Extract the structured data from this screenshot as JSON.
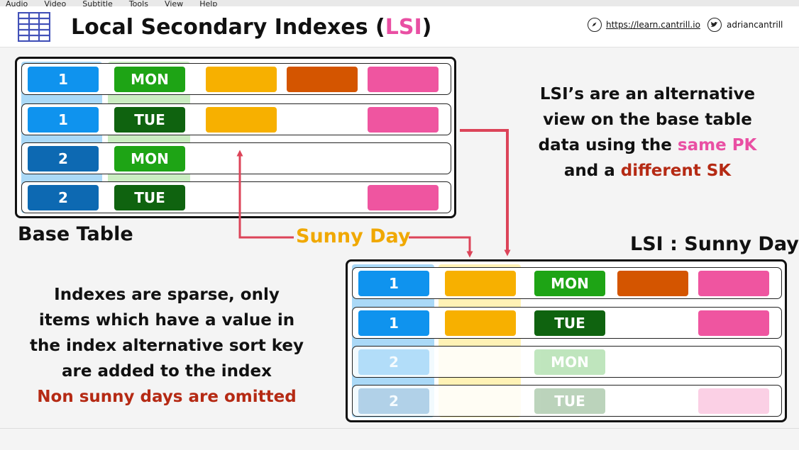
{
  "menu": [
    "Audio",
    "Video",
    "Subtitle",
    "Tools",
    "View",
    "Help"
  ],
  "header": {
    "title_prefix": "Local Secondary Indexes (",
    "title_highlight": "LSI",
    "title_suffix": ")",
    "website": "https://learn.cantrill.io",
    "twitter": "adriancantrill"
  },
  "base_table": {
    "label": "Base Table",
    "rows": [
      {
        "pk": "1",
        "sk": "MON"
      },
      {
        "pk": "1",
        "sk": "TUE"
      },
      {
        "pk": "2",
        "sk": "MON"
      },
      {
        "pk": "2",
        "sk": "TUE"
      }
    ]
  },
  "connector_label": "Sunny Day",
  "lsi_table": {
    "label": "LSI : Sunny Day",
    "rows": [
      {
        "pk": "1",
        "sk": "MON"
      },
      {
        "pk": "1",
        "sk": "TUE"
      },
      {
        "pk": "2",
        "sk": "MON"
      },
      {
        "pk": "2",
        "sk": "TUE"
      }
    ]
  },
  "explain": {
    "line1": "LSI’s are an alternative",
    "line2": "view on the base table",
    "line3_prefix": "data using the ",
    "line3_highlight": "same PK",
    "line4_prefix": "and a ",
    "line4_highlight": "different SK"
  },
  "sparse": {
    "line1": "Indexes are sparse, only",
    "line2": "items which have a value in",
    "line3": "the index alternative sort key",
    "line4": "are added to the index",
    "line5": "Non sunny days are omitted"
  },
  "colors": {
    "pk_light": "#0f93ee",
    "pk_dark": "#0d69b2",
    "sk_mid": "#1ea415",
    "sk_dark": "#0f630f",
    "attr_orange": "#f7b000",
    "attr_rust": "#d45500",
    "attr_pink": "#ef55a0",
    "arrow": "#dc4459"
  }
}
